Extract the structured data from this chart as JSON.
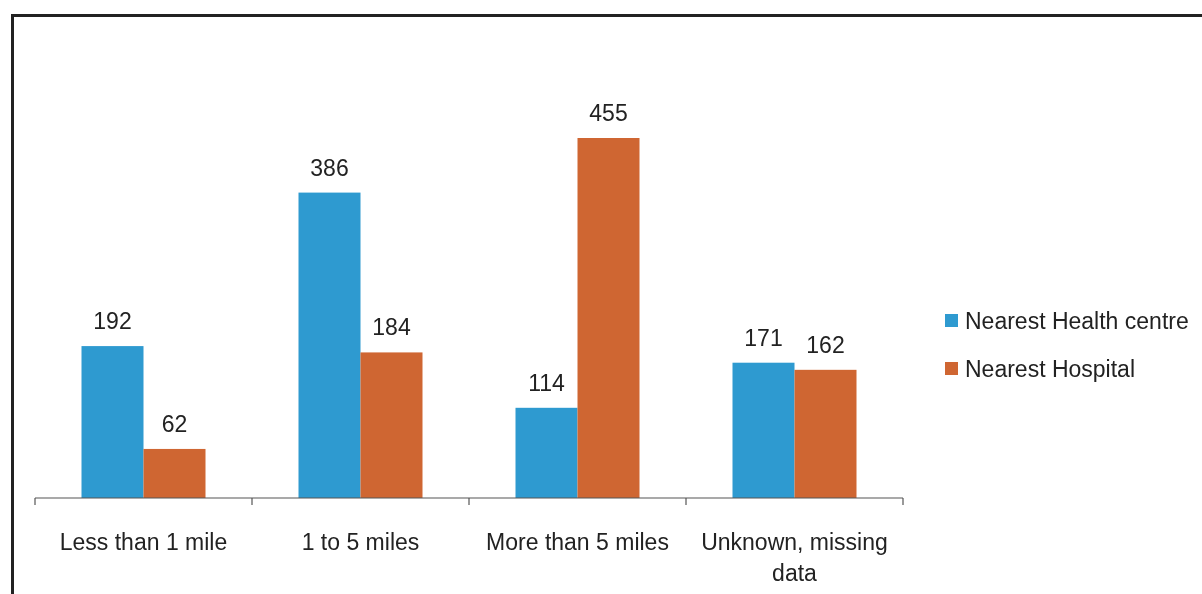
{
  "chart_data": {
    "type": "bar",
    "categories": [
      "Less than 1 mile",
      "1 to 5 miles",
      "More than 5 miles",
      "Unknown, missing data"
    ],
    "series": [
      {
        "name": "Nearest Health centre",
        "color": "#2e9ad0",
        "values": [
          192,
          386,
          114,
          171
        ]
      },
      {
        "name": "Nearest Hospital",
        "color": "#cf6632",
        "values": [
          62,
          184,
          455,
          162
        ]
      }
    ],
    "data_labels": true,
    "legend": "right"
  }
}
